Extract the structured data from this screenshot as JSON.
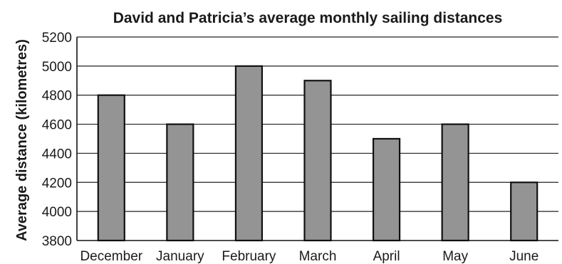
{
  "chart_data": {
    "type": "bar",
    "title": "David and Patricia’s average monthly sailing distances",
    "xlabel": "",
    "ylabel": "Average distance (kilometres)",
    "categories": [
      "December",
      "January",
      "February",
      "March",
      "April",
      "May",
      "June"
    ],
    "values": [
      4800,
      4600,
      5000,
      4900,
      4500,
      4600,
      4200
    ],
    "ylim": [
      3800,
      5200
    ],
    "yticks": [
      3800,
      4000,
      4200,
      4400,
      4600,
      4800,
      5000,
      5200
    ],
    "grid": true,
    "legend": "none",
    "colors": {
      "bar": "#949494",
      "outline": "#111111"
    }
  }
}
